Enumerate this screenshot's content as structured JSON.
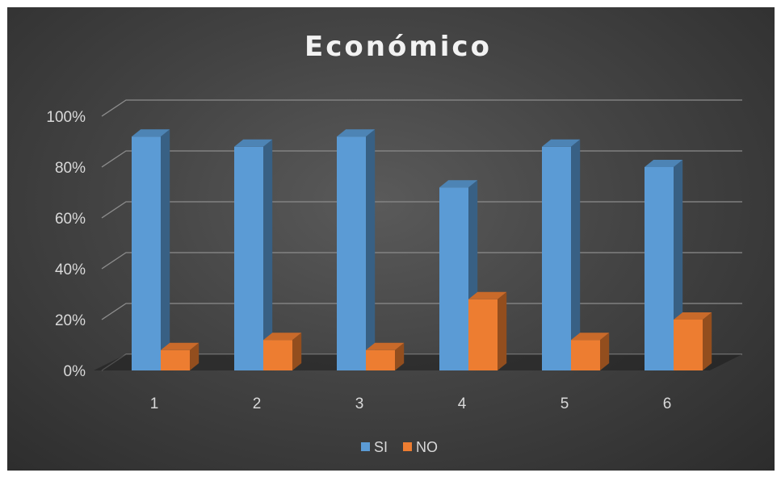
{
  "chart_data": {
    "type": "bar",
    "title": "Económico",
    "categories": [
      "1",
      "2",
      "3",
      "4",
      "5",
      "6"
    ],
    "series": [
      {
        "name": "SI",
        "values": [
          92,
          88,
          92,
          72,
          88,
          80
        ],
        "color": "#5b9bd5"
      },
      {
        "name": "NO",
        "values": [
          8,
          12,
          8,
          28,
          12,
          20
        ],
        "color": "#ed7d31"
      }
    ],
    "y_ticks": [
      "0%",
      "20%",
      "40%",
      "60%",
      "80%",
      "100%"
    ],
    "ylim": [
      0,
      100
    ],
    "grid": true,
    "legend_position": "bottom",
    "style": "3d-clustered-column"
  }
}
